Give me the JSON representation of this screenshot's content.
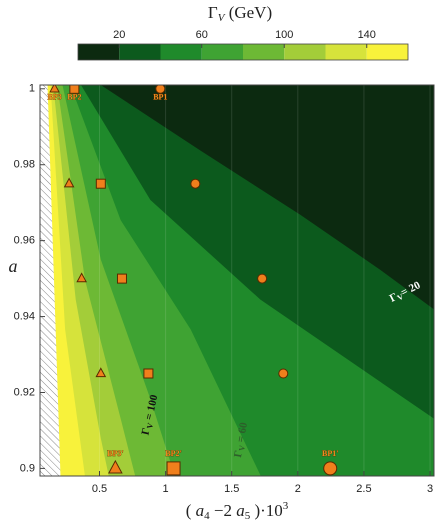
{
  "chart_data": {
    "type": "contour",
    "colorbar": {
      "title": {
        "symbol": "Γ",
        "sub": "V",
        "unit": " (GeV)"
      },
      "levels": [
        0,
        20,
        40,
        60,
        80,
        100,
        120,
        140,
        160
      ],
      "colors": [
        "#0c2a10",
        "#0c5a1d",
        "#1f8a2b",
        "#3fa333",
        "#6db935",
        "#a3cd39",
        "#d6e33b",
        "#f8f23b"
      ],
      "ticks": [
        20,
        60,
        100,
        140
      ]
    },
    "xlabel": [
      "( ",
      "a",
      "4",
      " −2 ",
      "a",
      "5",
      " )·10",
      "3"
    ],
    "ylabel": "a",
    "xlim": [
      0.05,
      3.03
    ],
    "ylim": [
      0.898,
      1.001
    ],
    "xticks": [
      0.5,
      1,
      1.5,
      2,
      2.5,
      3
    ],
    "yticks": [
      {
        "value": 0.9,
        "label": "0.9"
      },
      {
        "value": 0.92,
        "label": "0.92"
      },
      {
        "value": 0.94,
        "label": "0.94"
      },
      {
        "value": 0.96,
        "label": "0.96"
      },
      {
        "value": 0.98,
        "label": "0.98"
      },
      1
    ],
    "grid": true,
    "regions": [
      {
        "level": 20,
        "x": [
          0.51,
          1.26,
          2.02,
          2.62,
          3.03,
          3.03,
          0.05,
          0.05
        ],
        "y": [
          1.001,
          0.9838,
          0.9668,
          0.9524,
          0.9419,
          0.898,
          0.898,
          1.001
        ]
      },
      {
        "level": 40,
        "x": [
          0.36,
          0.885,
          1.716,
          3.03,
          3.03,
          0.05,
          0.05
        ],
        "y": [
          1.001,
          0.9707,
          0.9445,
          0.9131,
          0.898,
          0.898,
          1.001
        ]
      },
      {
        "level": 60,
        "x": [
          0.28,
          0.66,
          1.19,
          1.72,
          0.05,
          0.05
        ],
        "y": [
          1.001,
          0.9654,
          0.9366,
          0.898,
          0.898,
          1.001
        ]
      },
      {
        "level": 80,
        "x": [
          0.22,
          0.51,
          0.885,
          1.07,
          0.05,
          0.05
        ],
        "y": [
          1.001,
          0.955,
          0.9183,
          0.898,
          0.898,
          1.001
        ]
      },
      {
        "level": 100,
        "x": [
          0.18,
          0.39,
          0.66,
          0.77,
          0.05,
          0.05
        ],
        "y": [
          1.001,
          0.9497,
          0.9131,
          0.898,
          0.898,
          1.001
        ]
      },
      {
        "level": 120,
        "x": [
          0.15,
          0.32,
          0.51,
          0.57,
          0.05,
          0.05
        ],
        "y": [
          1.001,
          0.9445,
          0.9079,
          0.898,
          0.898,
          1.001
        ]
      },
      {
        "level": 140,
        "x": [
          0.13,
          0.24,
          0.39,
          0.05,
          0.05
        ],
        "y": [
          1.001,
          0.9366,
          0.898,
          0.898,
          1.001
        ]
      }
    ],
    "excluded_region": {
      "x": [
        0.05,
        0.107,
        0.205,
        0.05
      ],
      "y": [
        1.001,
        1.001,
        0.898,
        0.898
      ]
    },
    "contour_labels": [
      {
        "symbol": "Γ",
        "sub": "V",
        "rest": "= 20",
        "level": 20
      },
      {
        "symbol": "Γ",
        "sub": "V",
        "rest": " = 100",
        "level": 100
      },
      {
        "symbol": "Γ",
        "sub": "V",
        "rest": " = 60",
        "level": 60
      }
    ],
    "series": [
      {
        "marker": "circle",
        "color": "#f07f1c",
        "x": [
          0.96,
          1.225,
          1.73,
          1.89,
          2.245
        ],
        "y": [
          1.0,
          0.975,
          0.95,
          0.925,
          0.9
        ],
        "labels": [
          "BP1",
          null,
          null,
          null,
          "BP1'"
        ]
      },
      {
        "marker": "square",
        "color": "#f07f1c",
        "x": [
          0.31,
          0.51,
          0.67,
          0.87,
          1.06
        ],
        "y": [
          1.0,
          0.975,
          0.95,
          0.925,
          0.9
        ],
        "labels": [
          "BP2",
          null,
          null,
          null,
          "BP2'"
        ]
      },
      {
        "marker": "triangle",
        "color": "#f07f1c",
        "x": [
          0.16,
          0.27,
          0.365,
          0.51,
          0.62
        ],
        "y": [
          1.0,
          0.975,
          0.95,
          0.925,
          0.9
        ],
        "labels": [
          "BP3",
          null,
          null,
          null,
          "BP3'"
        ]
      }
    ]
  }
}
